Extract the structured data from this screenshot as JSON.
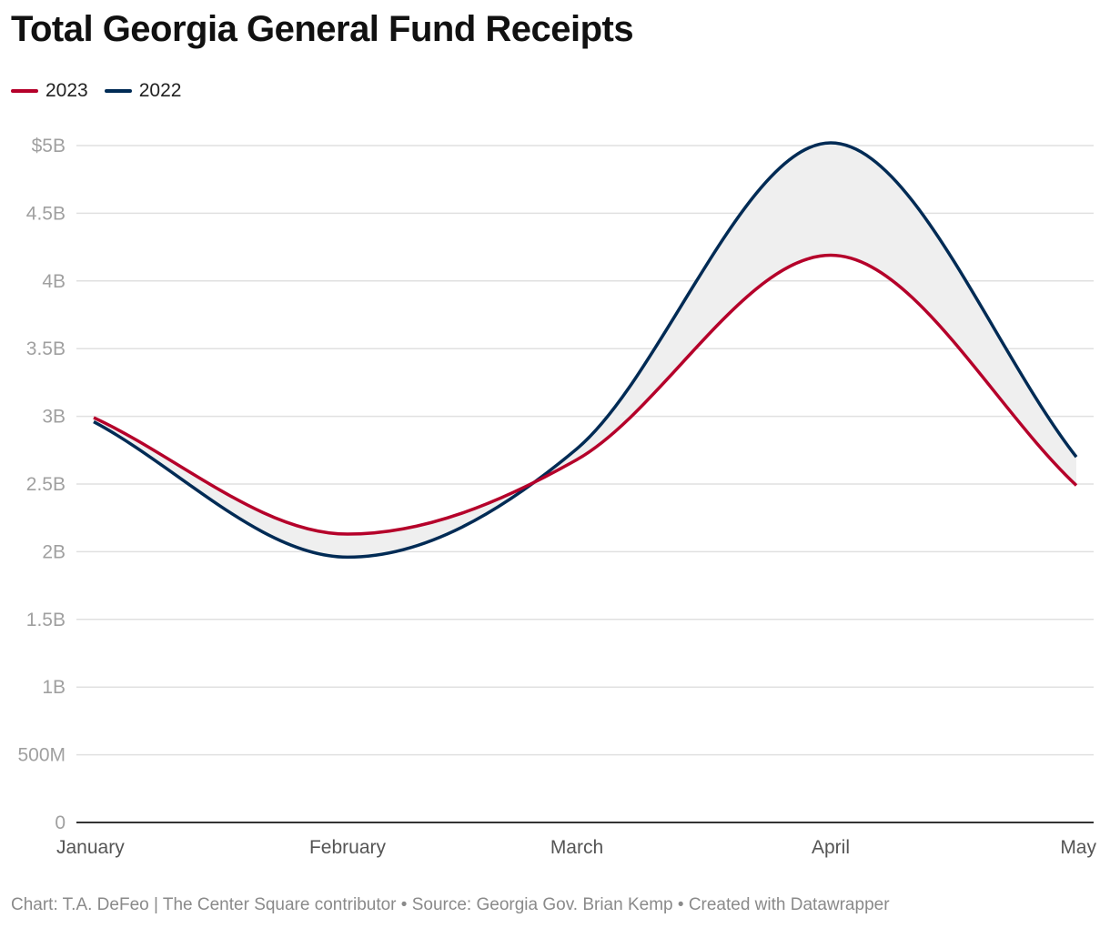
{
  "chart_data": {
    "type": "area",
    "title": "Total Georgia General Fund Receipts",
    "x": [
      "January",
      "February",
      "March",
      "April",
      "May"
    ],
    "x_days": [
      0,
      31,
      59,
      90,
      120
    ],
    "series": [
      {
        "name": "2023",
        "color": "#b5002a",
        "values": [
          2.99,
          2.13,
          2.68,
          4.19,
          2.49
        ]
      },
      {
        "name": "2022",
        "color": "#002b55",
        "values": [
          2.96,
          1.96,
          2.76,
          5.02,
          2.7
        ]
      }
    ],
    "fill_between_color": "#efefef",
    "ylim": [
      0,
      5
    ],
    "yticks": [
      0,
      0.5,
      1,
      1.5,
      2,
      2.5,
      3,
      3.5,
      4,
      4.5,
      5
    ],
    "ytick_labels": [
      "0",
      "500M",
      "1B",
      "1.5B",
      "2B",
      "2.5B",
      "3B",
      "3.5B",
      "4B",
      "4.5B",
      "$5B"
    ],
    "unit": "billions USD",
    "grid": true,
    "legend": "top-left"
  },
  "footer": "Chart: T.A. DeFeo | The Center Square contributor • Source: Georgia Gov. Brian Kemp • Created with Datawrapper"
}
